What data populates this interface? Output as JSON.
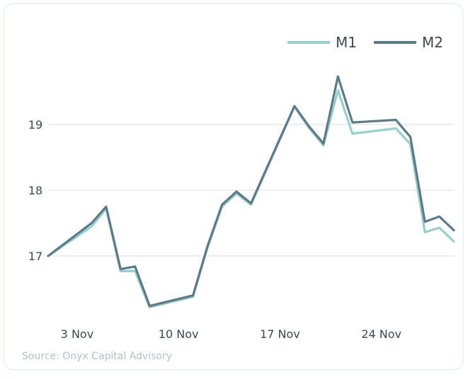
{
  "source": "Source: Onyx Capital Advisory",
  "chart_data": {
    "type": "line",
    "title": "",
    "xlabel": "",
    "ylabel": "",
    "x_tick_labels": [
      "3 Nov",
      "10 Nov",
      "17 Nov",
      "24 Nov"
    ],
    "y_ticks": [
      17,
      18,
      19
    ],
    "ylim": [
      16.0,
      20.0
    ],
    "grid": "horizontal",
    "legend_position": "top-right",
    "x": [
      "2023-11-01",
      "2023-11-04",
      "2023-11-05",
      "2023-11-06",
      "2023-11-07",
      "2023-11-08",
      "2023-11-11",
      "2023-11-12",
      "2023-11-13",
      "2023-11-14",
      "2023-11-15",
      "2023-11-18",
      "2023-11-19",
      "2023-11-20",
      "2023-11-21",
      "2023-11-22",
      "2023-11-25",
      "2023-11-26",
      "2023-11-27",
      "2023-11-28",
      "2023-11-29"
    ],
    "series": [
      {
        "name": "M1",
        "color": "#97cfca",
        "values": [
          17.0,
          17.45,
          17.72,
          16.77,
          16.77,
          16.22,
          16.38,
          17.13,
          17.75,
          17.95,
          17.78,
          19.27,
          18.95,
          18.68,
          19.52,
          18.86,
          18.94,
          18.7,
          17.36,
          17.43,
          17.22
        ]
      },
      {
        "name": "M2",
        "color": "#5c7a8a",
        "values": [
          17.0,
          17.5,
          17.75,
          16.8,
          16.84,
          16.24,
          16.4,
          17.15,
          17.78,
          17.98,
          17.8,
          19.28,
          18.97,
          18.71,
          19.73,
          19.03,
          19.07,
          18.81,
          17.52,
          17.6,
          17.39
        ]
      }
    ]
  }
}
